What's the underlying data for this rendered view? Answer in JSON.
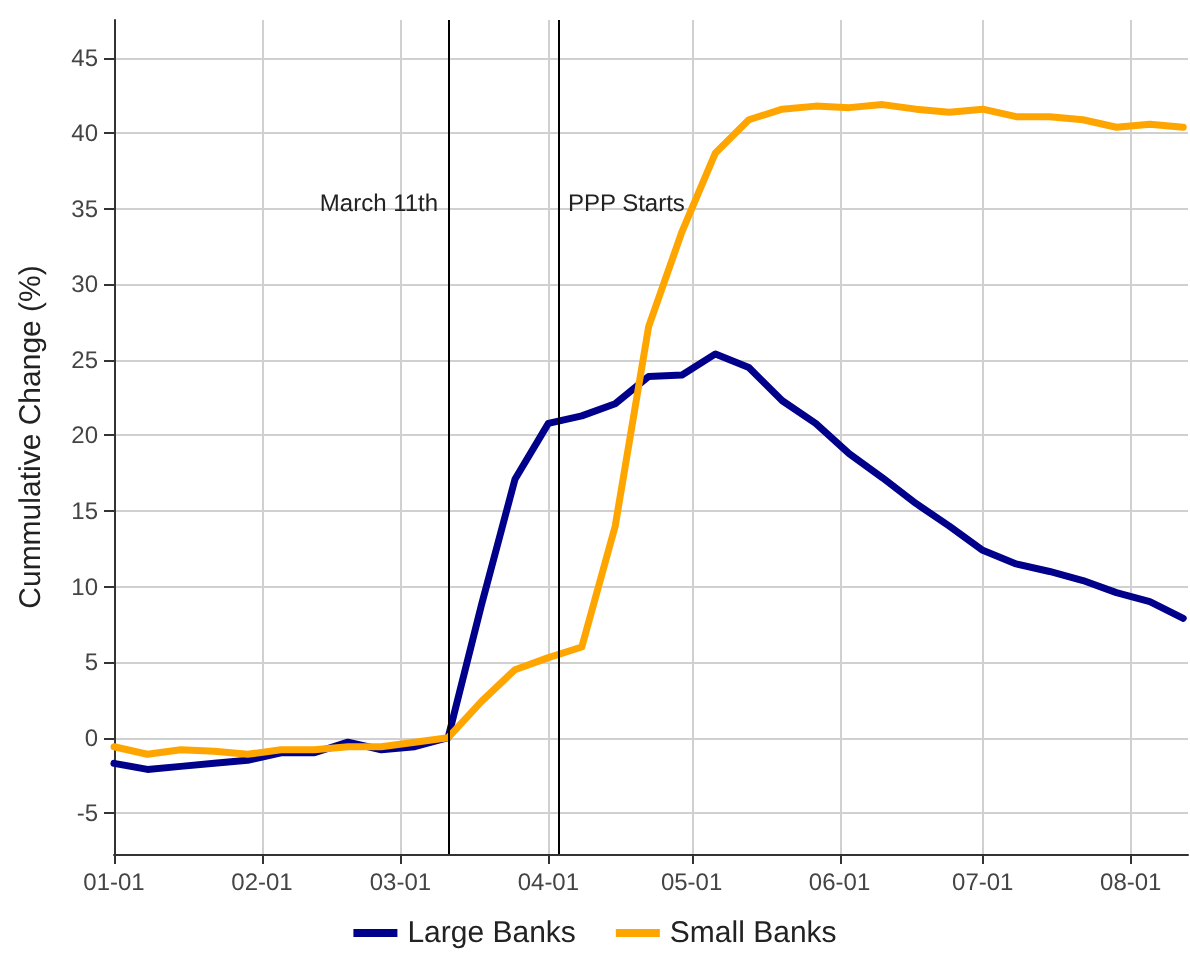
{
  "chart_data": {
    "type": "line",
    "ylabel": "Cummulative Change (%)",
    "x": [
      "--01-01",
      "--01-08",
      "--01-15",
      "--01-22",
      "--01-29",
      "--02-05",
      "--02-12",
      "--02-19",
      "--02-26",
      "--03-04",
      "--03-11",
      "--03-18",
      "--03-25",
      "--04-01",
      "--04-08",
      "--04-15",
      "--04-22",
      "--04-29",
      "--05-06",
      "--05-13",
      "--05-20",
      "--05-27",
      "--06-03",
      "--06-10",
      "--06-17",
      "--06-24",
      "--07-01",
      "--07-08",
      "--07-15",
      "--07-22",
      "--07-29",
      "--08-05",
      "--08-12"
    ],
    "series": [
      {
        "name": "Large Banks",
        "color": "#00008b",
        "values": [
          -1.7,
          -2.1,
          -1.9,
          -1.7,
          -1.5,
          -1.0,
          -1.0,
          -0.3,
          -0.8,
          -0.6,
          0,
          8.8,
          17.1,
          20.8,
          21.3,
          22.1,
          23.9,
          24.0,
          25.4,
          24.5,
          22.3,
          20.8,
          18.8,
          17.2,
          15.5,
          14.0,
          12.4,
          11.5,
          11.0,
          10.4,
          9.6,
          9.0,
          7.9
        ]
      },
      {
        "name": "Small Banks",
        "color": "#ffa500",
        "values": [
          -0.6,
          -1.1,
          -0.8,
          -0.9,
          -1.1,
          -0.8,
          -0.8,
          -0.6,
          -0.6,
          -0.3,
          0,
          2.4,
          4.5,
          5.3,
          6.0,
          14.0,
          27.2,
          33.5,
          38.7,
          40.9,
          41.6,
          41.8,
          41.7,
          41.9,
          41.6,
          41.4,
          41.6,
          41.1,
          41.1,
          40.9,
          40.4,
          40.6,
          40.4
        ]
      }
    ],
    "xlim": [
      "--01-01",
      "--08-13"
    ],
    "xticks": [
      {
        "value": "--01-01",
        "label": "01-01"
      },
      {
        "value": "--02-01",
        "label": "02-01"
      },
      {
        "value": "--03-01",
        "label": "03-01"
      },
      {
        "value": "--04-01",
        "label": "04-01"
      },
      {
        "value": "--05-01",
        "label": "05-01"
      },
      {
        "value": "--06-01",
        "label": "06-01"
      },
      {
        "value": "--07-01",
        "label": "07-01"
      },
      {
        "value": "--08-01",
        "label": "08-01"
      }
    ],
    "ylim": [
      -7.7,
      47.5
    ],
    "yticks": [
      -5,
      0,
      5,
      10,
      15,
      20,
      25,
      30,
      35,
      40,
      45
    ],
    "ref_lines": [
      {
        "axis": "x",
        "value": "--03-11",
        "label": "March 11th",
        "color": "#000000"
      },
      {
        "axis": "x",
        "value": "--04-03",
        "label": "PPP Starts",
        "color": "#000000"
      }
    ],
    "grid": true,
    "legend": "bottom",
    "marker": "none",
    "line_style": "solid"
  }
}
